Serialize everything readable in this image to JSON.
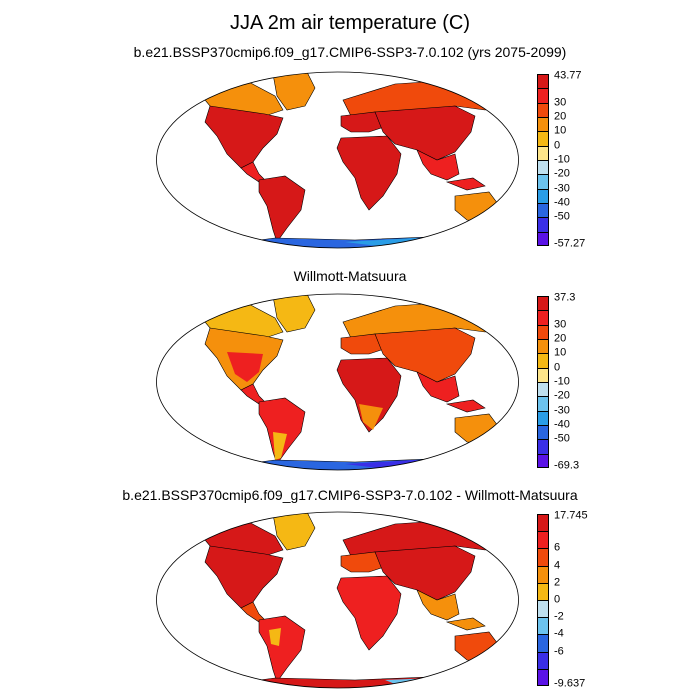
{
  "title": "JJA 2m air temperature (C)",
  "panels": [
    {
      "title": "b.e21.BSSP370cmip6.f09_g17.CMIP6-SSP3-7.0.102 (yrs 2075-2099)",
      "colorbar_labels": [
        "43.77",
        "30",
        "20",
        "10",
        "0",
        "-10",
        "-20",
        "-30",
        "-40",
        "-50",
        "-57.27"
      ],
      "colors": [
        "#d61818",
        "#ee2020",
        "#f04a0c",
        "#f5900c",
        "#f5b814",
        "#fde58a",
        "#bfe0ef",
        "#6cc3ee",
        "#2a9de6",
        "#2a66e0",
        "#3a2ee6",
        "#5a12e6"
      ]
    },
    {
      "title": "Willmott-Matsuura",
      "colorbar_labels": [
        "37.3",
        "30",
        "20",
        "10",
        "0",
        "-10",
        "-20",
        "-30",
        "-40",
        "-50",
        "-69.3"
      ],
      "colors": [
        "#d61818",
        "#ee2020",
        "#f04a0c",
        "#f5900c",
        "#f5b814",
        "#fde58a",
        "#bfe0ef",
        "#6cc3ee",
        "#2a9de6",
        "#2a66e0",
        "#3a2ee6",
        "#5a12e6"
      ]
    },
    {
      "title": "b.e21.BSSP370cmip6.f09_g17.CMIP6-SSP3-7.0.102 - Willmott-Matsuura",
      "colorbar_labels": [
        "17.745",
        "6",
        "4",
        "2",
        "0",
        "-2",
        "-4",
        "-6",
        "-9.637"
      ],
      "colors": [
        "#d61818",
        "#ee2020",
        "#f04a0c",
        "#f5900c",
        "#f5b814",
        "#bfe0ef",
        "#6cc3ee",
        "#2a66e0",
        "#3a2ee6",
        "#5a12e6"
      ]
    }
  ]
}
